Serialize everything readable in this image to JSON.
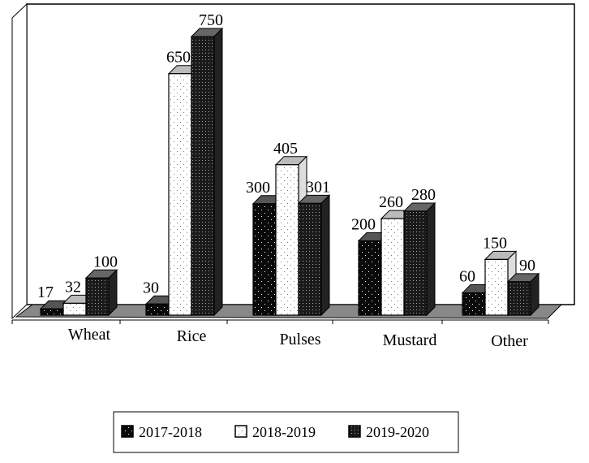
{
  "chart_data": {
    "type": "bar",
    "style": "3d-clustered",
    "title": "",
    "xlabel": "",
    "ylabel": "",
    "ylim": [
      0,
      750
    ],
    "grid": false,
    "legend_position": "bottom",
    "categories": [
      "Wheat",
      "Rice",
      "Pulses",
      "Mustard",
      "Other"
    ],
    "series": [
      {
        "name": "2017-2018",
        "values": [
          17,
          30,
          300,
          200,
          60
        ],
        "fill": "#111111",
        "pattern": "dark-sparse-dots"
      },
      {
        "name": "2018-2019",
        "values": [
          32,
          650,
          405,
          260,
          150
        ],
        "fill": "#ffffff",
        "pattern": "light-dots"
      },
      {
        "name": "2019-2020",
        "values": [
          100,
          750,
          301,
          280,
          90
        ],
        "fill": "#222222",
        "pattern": "dark-dense-dots"
      }
    ]
  }
}
